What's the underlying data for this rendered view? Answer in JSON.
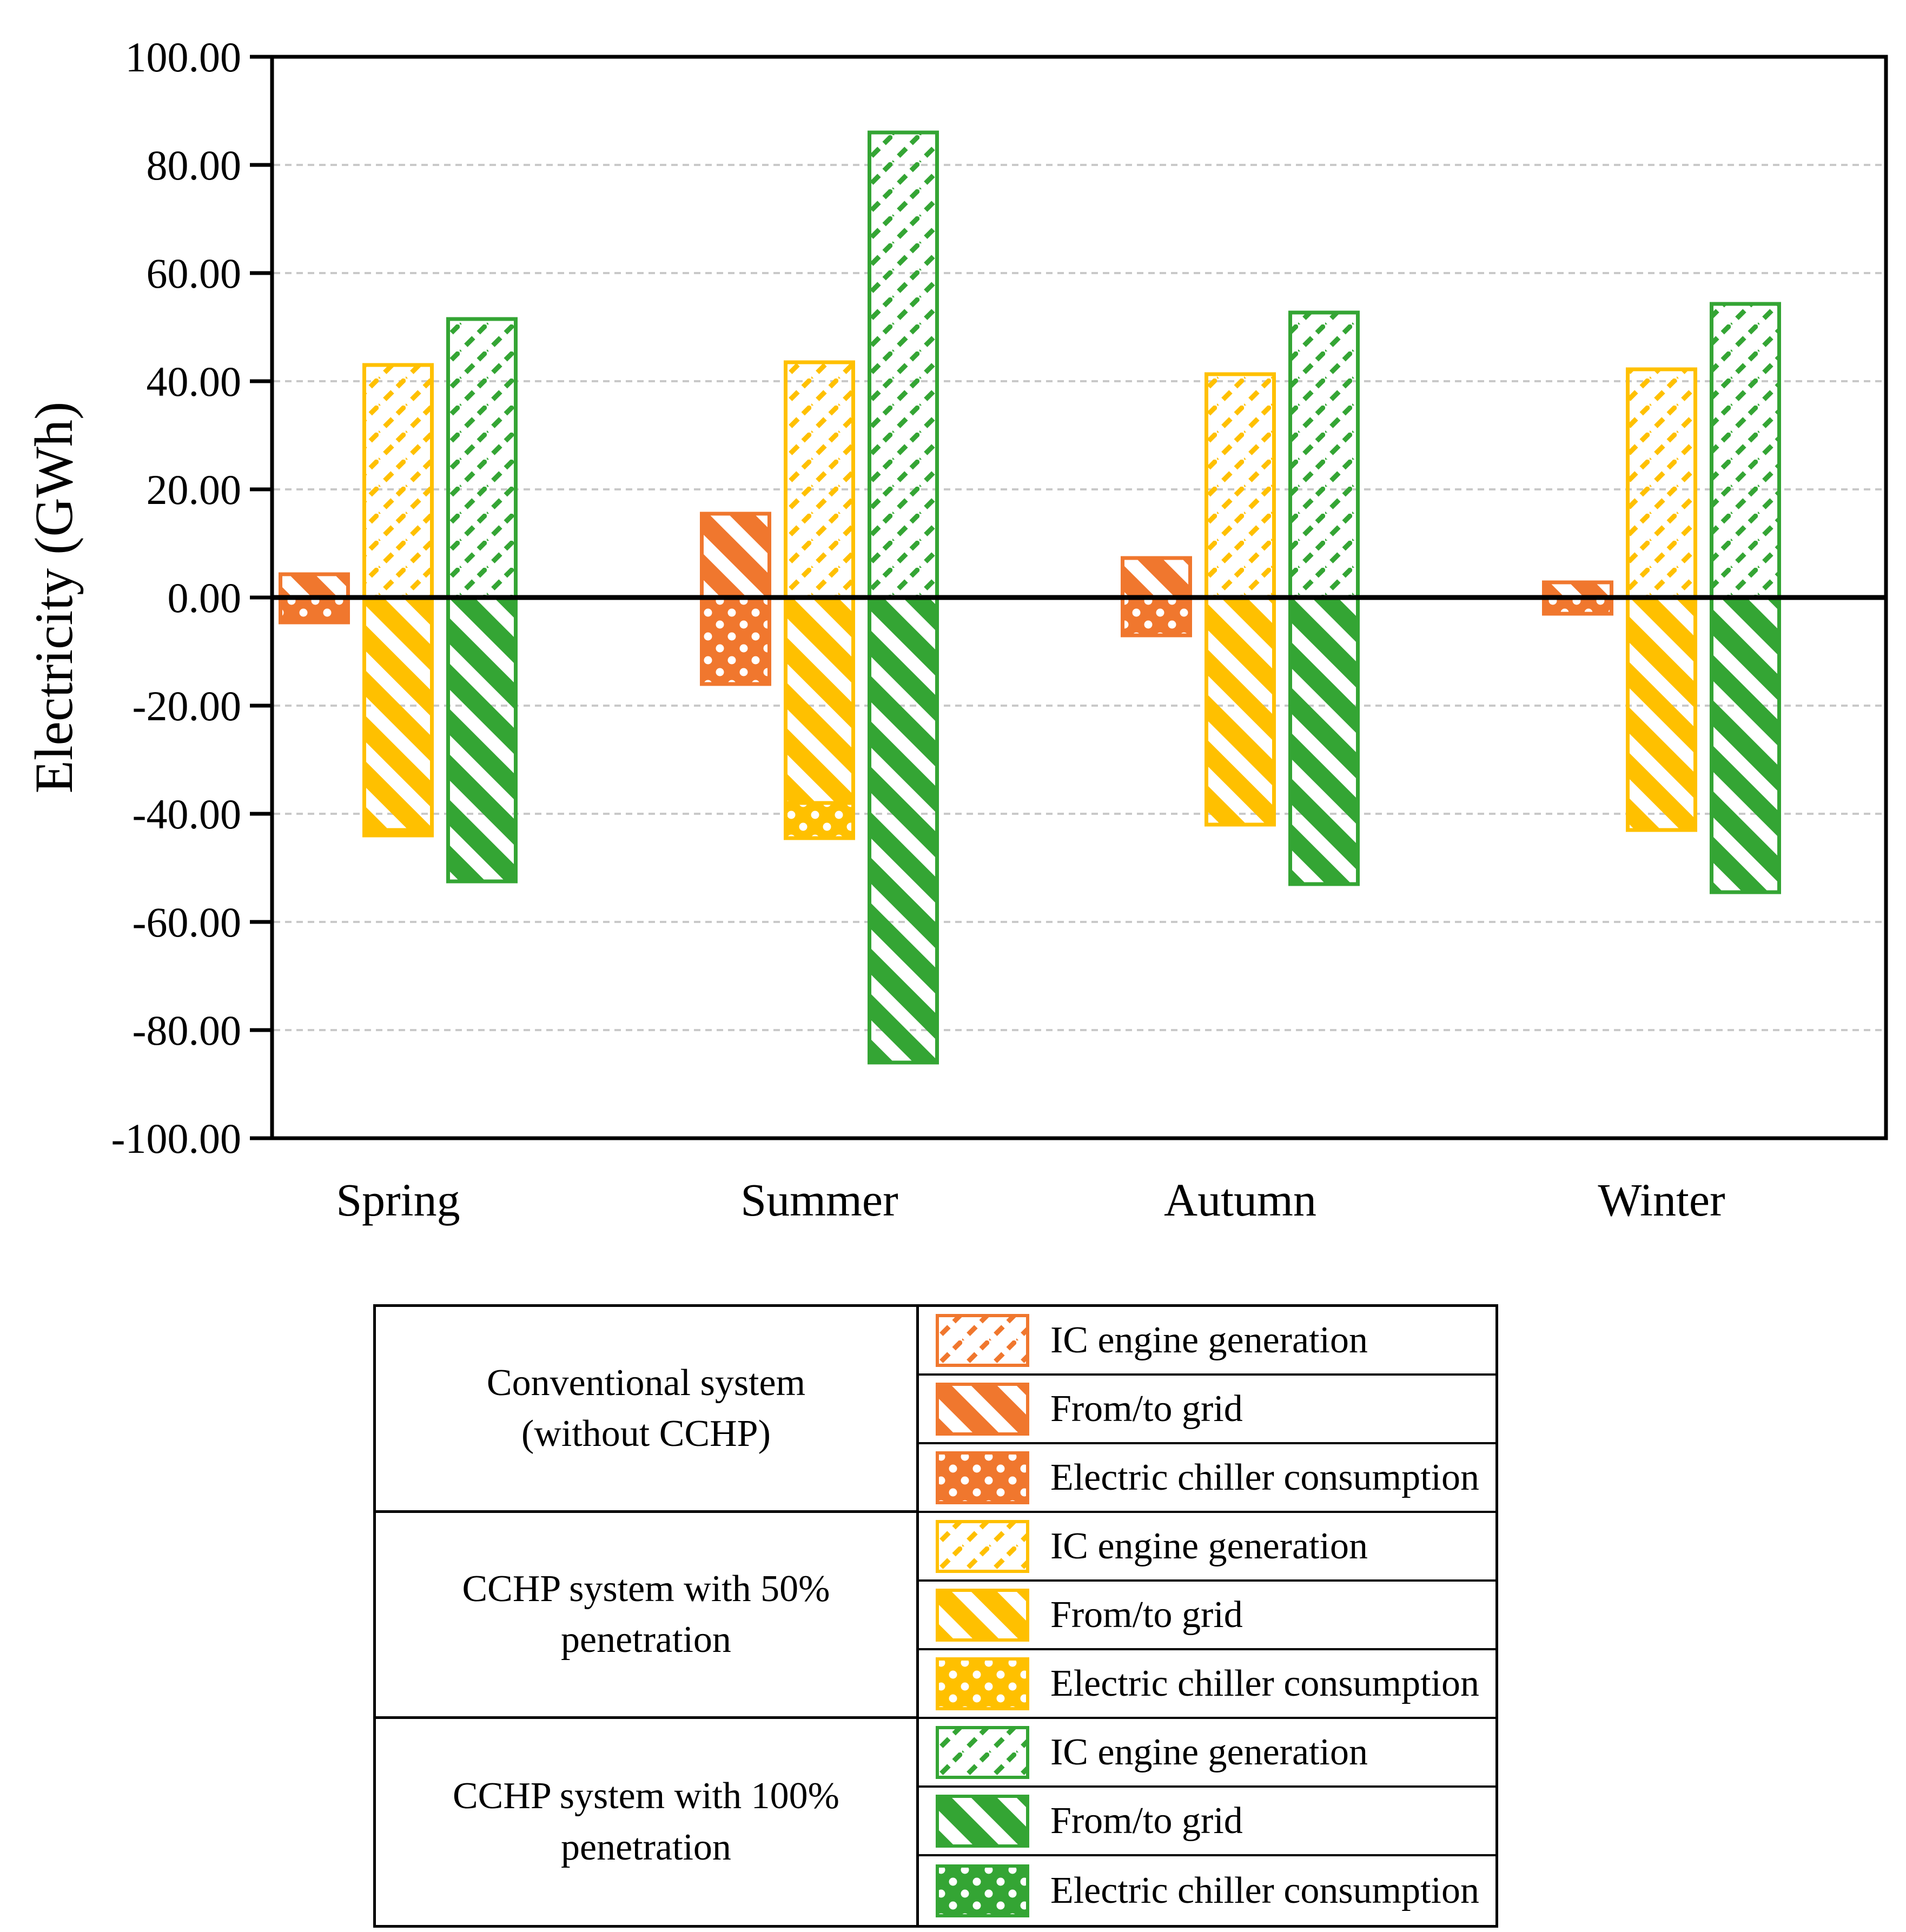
{
  "chart": {
    "y_axis_title": "Electricity (GWh)"
  },
  "y_axis": {
    "min": -100,
    "max": 100,
    "step": 20,
    "tick_labels": [
      "100.00",
      "80.00",
      "60.00",
      "40.00",
      "20.00",
      "0.00",
      "-20.00",
      "-40.00",
      "-60.00",
      "-80.00",
      "-100.00"
    ]
  },
  "x_axis": {
    "categories": [
      "Spring",
      "Summer",
      "Autumn",
      "Winter"
    ]
  },
  "chart_data": {
    "type": "bar",
    "title": "",
    "ylabel": "Electricity (GWh)",
    "ylim": [
      -100,
      100
    ],
    "ytick_step": 20,
    "grid": true,
    "legend_position": "bottom-table",
    "categories": [
      "Spring",
      "Summer",
      "Autumn",
      "Winter"
    ],
    "stacking": "positive values stack up from zero, negative values stack down, per system bar",
    "systems": [
      {
        "name": "Conventional system (without CCHP)",
        "color": "#F0772E",
        "components": [
          {
            "name": "IC engine generation",
            "pattern": "thin-diagonal-dash-hatch",
            "values": [
              0,
              0,
              0,
              0
            ]
          },
          {
            "name": "From/to grid",
            "pattern": "bold-diagonal-stripes",
            "values": [
              4.3,
              15.5,
              7.3,
              2.8
            ]
          },
          {
            "name": "Electric chiller consumption",
            "pattern": "solid-with-white-dots",
            "values": [
              -4.6,
              -16.0,
              -7.0,
              -3.0
            ]
          }
        ]
      },
      {
        "name": "CCHP system with 50% penetration",
        "color": "#FFC000",
        "components": [
          {
            "name": "IC engine generation",
            "pattern": "thin-diagonal-dash-hatch",
            "values": [
              43.0,
              43.5,
              41.3,
              42.2
            ]
          },
          {
            "name": "From/to grid",
            "pattern": "bold-diagonal-stripes",
            "values": [
              -43.0,
              -38.0,
              -42.0,
              -43.0
            ]
          },
          {
            "name": "Electric chiller consumption",
            "pattern": "solid-with-white-dots",
            "values": [
              -1.0,
              -6.5,
              0,
              0
            ]
          }
        ]
      },
      {
        "name": "CCHP system with 100% penetration",
        "color": "#34A534",
        "components": [
          {
            "name": "IC engine generation",
            "pattern": "thin-diagonal-dash-hatch",
            "values": [
              51.5,
              86.0,
              52.7,
              54.3
            ]
          },
          {
            "name": "From/to grid",
            "pattern": "bold-diagonal-stripes",
            "values": [
              -52.5,
              -86.0,
              -53.0,
              -54.5
            ]
          },
          {
            "name": "Electric chiller consumption",
            "pattern": "solid-with-white-dots",
            "values": [
              0,
              0,
              0,
              0
            ]
          }
        ]
      }
    ]
  },
  "legend": {
    "rows": [
      {
        "system_lines": [
          "Conventional system",
          "(without CCHP)"
        ],
        "color": "#F0772E",
        "entries": [
          "IC engine generation",
          "From/to grid",
          "Electric chiller consumption"
        ]
      },
      {
        "system_lines": [
          "CCHP system with 50%",
          "penetration"
        ],
        "color": "#FFC000",
        "entries": [
          "IC engine generation",
          "From/to grid",
          "Electric chiller consumption"
        ]
      },
      {
        "system_lines": [
          "CCHP system with 100%",
          "penetration"
        ],
        "color": "#34A534",
        "entries": [
          "IC engine generation",
          "From/to grid",
          "Electric chiller consumption"
        ]
      }
    ]
  }
}
